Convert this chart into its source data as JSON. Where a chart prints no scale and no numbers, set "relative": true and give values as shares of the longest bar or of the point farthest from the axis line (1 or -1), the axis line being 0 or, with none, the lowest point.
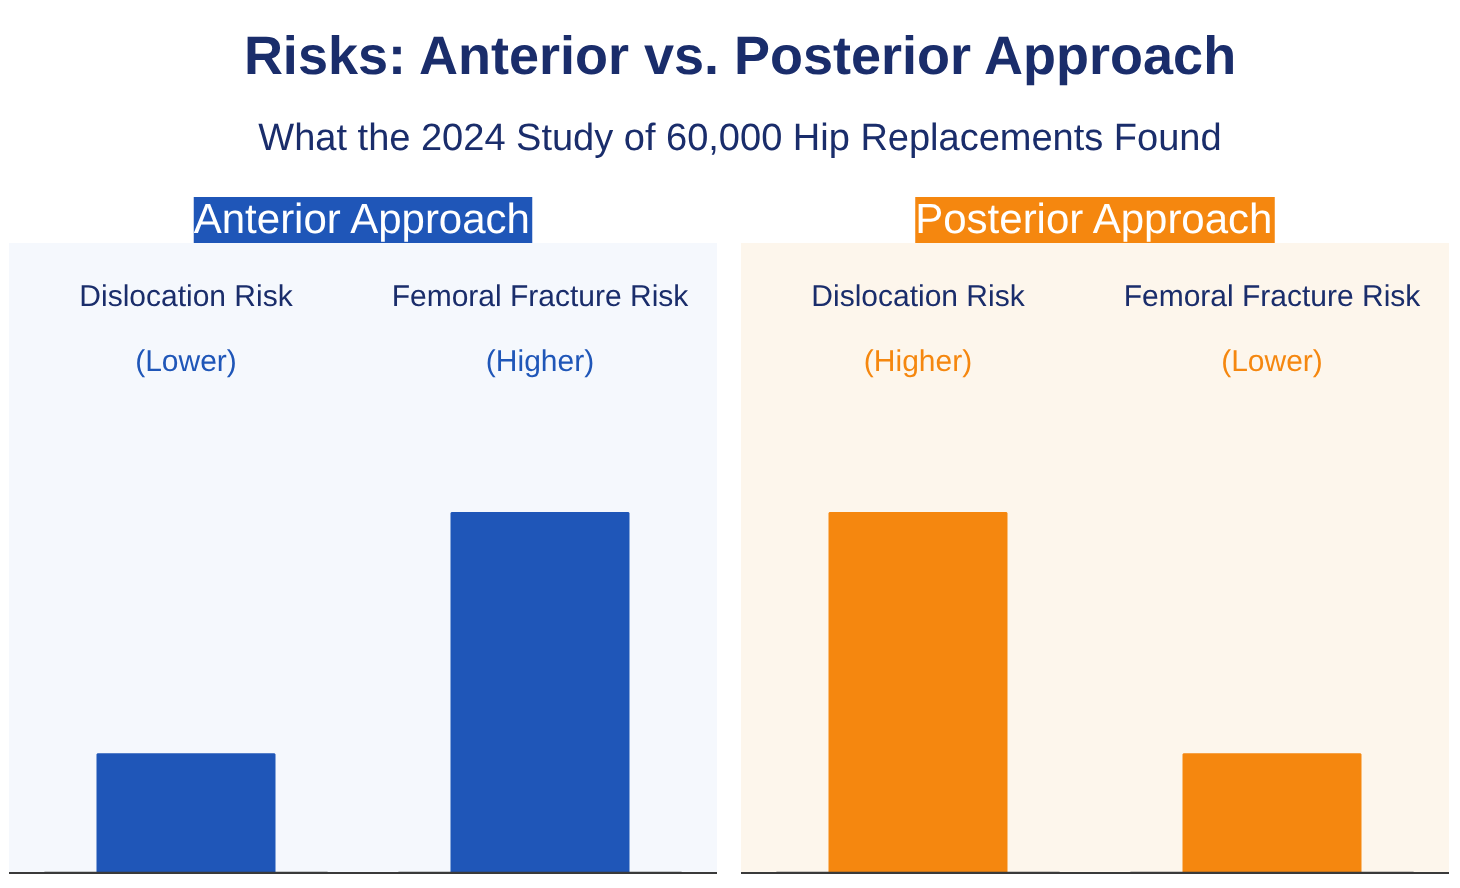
{
  "chart_data": [
    {
      "type": "other",
      "title": "Risks: Anterior vs. Posterior Approach",
      "subtitle": "What the 2024 Study of 60,000 Hip Replacements Found"
    },
    {
      "type": "bar",
      "title": "Anterior Approach",
      "categories": [
        "Dislocation Risk",
        "Femoral Fracture Risk"
      ],
      "values": [
        0.33,
        1
      ],
      "color": "#1f56b8",
      "annotations": [
        "(Lower)",
        "(Higher)"
      ],
      "relative": true
    },
    {
      "type": "bar",
      "title": "Posterior Approach",
      "categories": [
        "Dislocation Risk",
        "Femoral Fracture Risk"
      ],
      "values": [
        1,
        0.33
      ],
      "color": "#f5870f",
      "annotations": [
        "(Higher)",
        "(Lower)"
      ],
      "relative": true
    }
  ]
}
